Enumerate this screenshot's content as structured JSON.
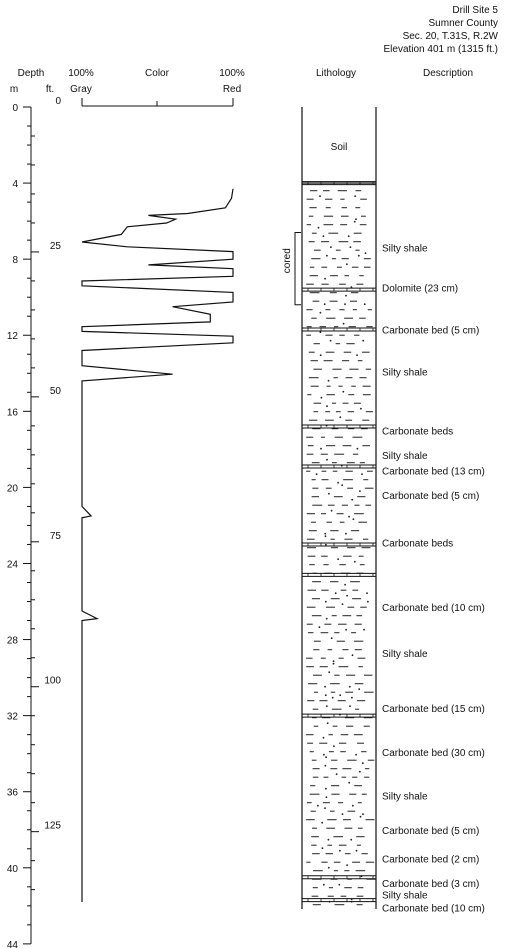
{
  "site": {
    "lines": [
      "Drill Site 5",
      "Sumner County",
      "Sec. 20, T.31S, R.2W",
      "Elevation 401 m (1315 ft.)"
    ]
  },
  "headers": {
    "depth": "Depth",
    "m": "m",
    "ft": "ft.",
    "gray_pct": "100%",
    "gray": "Gray",
    "color": "Color",
    "red_pct": "100%",
    "red": "Red",
    "lithology": "Lithology",
    "description": "Description"
  },
  "depth_axis": {
    "m_ticks": [
      "0",
      "4",
      "8",
      "12",
      "16",
      "20",
      "24",
      "28",
      "32",
      "36",
      "40",
      "44"
    ],
    "ft_ticks": [
      "0",
      "25",
      "50",
      "75",
      "100",
      "125"
    ]
  },
  "cored_label": "cored",
  "cored_interval_m": [
    6.6,
    10.4
  ],
  "soil_label": "Soil",
  "bed_boundaries_m": [
    4.0,
    9.6,
    11.7,
    16.8,
    18.9,
    23.0,
    24.6,
    32.0,
    40.5,
    41.7
  ],
  "descriptions": [
    {
      "text": "Silty shale",
      "depth_m": 7.4
    },
    {
      "text": "Dolomite (23 cm)",
      "depth_m": 9.5
    },
    {
      "text": "Carbonate bed (5 cm)",
      "depth_m": 11.7
    },
    {
      "text": "Silty shale",
      "depth_m": 13.9
    },
    {
      "text": "Carbonate beds",
      "depth_m": 17.0
    },
    {
      "text": "Silty shale",
      "depth_m": 18.3
    },
    {
      "text": "Carbonate bed (13 cm)",
      "depth_m": 19.1
    },
    {
      "text": "Carbonate bed (5 cm)",
      "depth_m": 20.4
    },
    {
      "text": "Carbonate beds",
      "depth_m": 22.9
    },
    {
      "text": "Carbonate bed (10 cm)",
      "depth_m": 26.3
    },
    {
      "text": "Silty shale",
      "depth_m": 28.7
    },
    {
      "text": "Carbonate bed (15 cm)",
      "depth_m": 31.6
    },
    {
      "text": "Carbonate bed (30 cm)",
      "depth_m": 33.9
    },
    {
      "text": "Silty shale",
      "depth_m": 36.2
    },
    {
      "text": "Carbonate bed (5 cm)",
      "depth_m": 38.0
    },
    {
      "text": "Carbonate bed (2 cm)",
      "depth_m": 39.5
    },
    {
      "text": "Carbonate bed (3 cm)",
      "depth_m": 40.8
    },
    {
      "text": "Silty shale",
      "depth_m": 41.4
    },
    {
      "text": "Carbonate bed (10 cm)",
      "depth_m": 42.1
    }
  ],
  "color_profile": [
    [
      4.3,
      100
    ],
    [
      4.8,
      99
    ],
    [
      5.3,
      95
    ],
    [
      5.6,
      70
    ],
    [
      5.7,
      44
    ],
    [
      5.9,
      62
    ],
    [
      6.1,
      56
    ],
    [
      6.3,
      30
    ],
    [
      6.7,
      26
    ],
    [
      7.1,
      0
    ],
    [
      7.35,
      30
    ],
    [
      7.6,
      100
    ],
    [
      8.0,
      100
    ],
    [
      8.3,
      44
    ],
    [
      8.5,
      100
    ],
    [
      8.9,
      100
    ],
    [
      9.15,
      0
    ],
    [
      9.4,
      0
    ],
    [
      9.75,
      100
    ],
    [
      10.25,
      100
    ],
    [
      10.5,
      60
    ],
    [
      10.9,
      85
    ],
    [
      11.3,
      85
    ],
    [
      11.55,
      0
    ],
    [
      11.8,
      0
    ],
    [
      12.05,
      100
    ],
    [
      12.4,
      100
    ],
    [
      12.8,
      0
    ],
    [
      13.6,
      0
    ],
    [
      14.05,
      60
    ],
    [
      14.4,
      0
    ],
    [
      14.7,
      0
    ],
    [
      21.0,
      0
    ],
    [
      21.5,
      6
    ],
    [
      21.6,
      0
    ],
    [
      26.5,
      0
    ],
    [
      26.9,
      10
    ],
    [
      27.0,
      0
    ],
    [
      41.8,
      0
    ]
  ]
}
